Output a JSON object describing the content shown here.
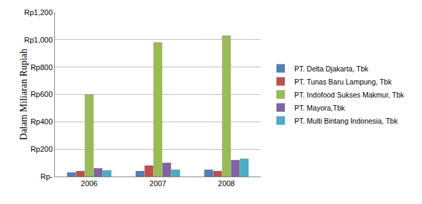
{
  "chart_data": {
    "type": "bar",
    "y_label": "Dalam Miliaran Rupiah",
    "categories": [
      "2006",
      "2007",
      "2008"
    ],
    "series": [
      {
        "name": "PT. Delta Djakarta, Tbk",
        "color": "#4f81bd",
        "values": [
          30,
          40,
          50
        ]
      },
      {
        "name": "PT. Tunas Baru Lampung, Tbk",
        "color": "#c0504d",
        "values": [
          40,
          80,
          40
        ]
      },
      {
        "name": "PT. Indofood Sukses Makmur, Tbk",
        "color": "#9bbb59",
        "values": [
          600,
          980,
          1030
        ]
      },
      {
        "name": "PT. Mayora,Tbk",
        "color": "#8064a2",
        "values": [
          60,
          100,
          120
        ]
      },
      {
        "name": "PT. Multi Bintang Indonesia, Tbk",
        "color": "#4bacc6",
        "values": [
          45,
          50,
          130
        ]
      }
    ],
    "ylim": [
      0,
      1200
    ],
    "yticks": [
      {
        "value": 0,
        "label": "Rp-"
      },
      {
        "value": 200,
        "label": "Rp200"
      },
      {
        "value": 400,
        "label": "Rp400"
      },
      {
        "value": 600,
        "label": "Rp600"
      },
      {
        "value": 800,
        "label": "Rp800"
      },
      {
        "value": 1000,
        "label": "Rp1,000"
      },
      {
        "value": 1200,
        "label": "Rp1,200"
      }
    ],
    "grid": true,
    "legend": "right"
  }
}
